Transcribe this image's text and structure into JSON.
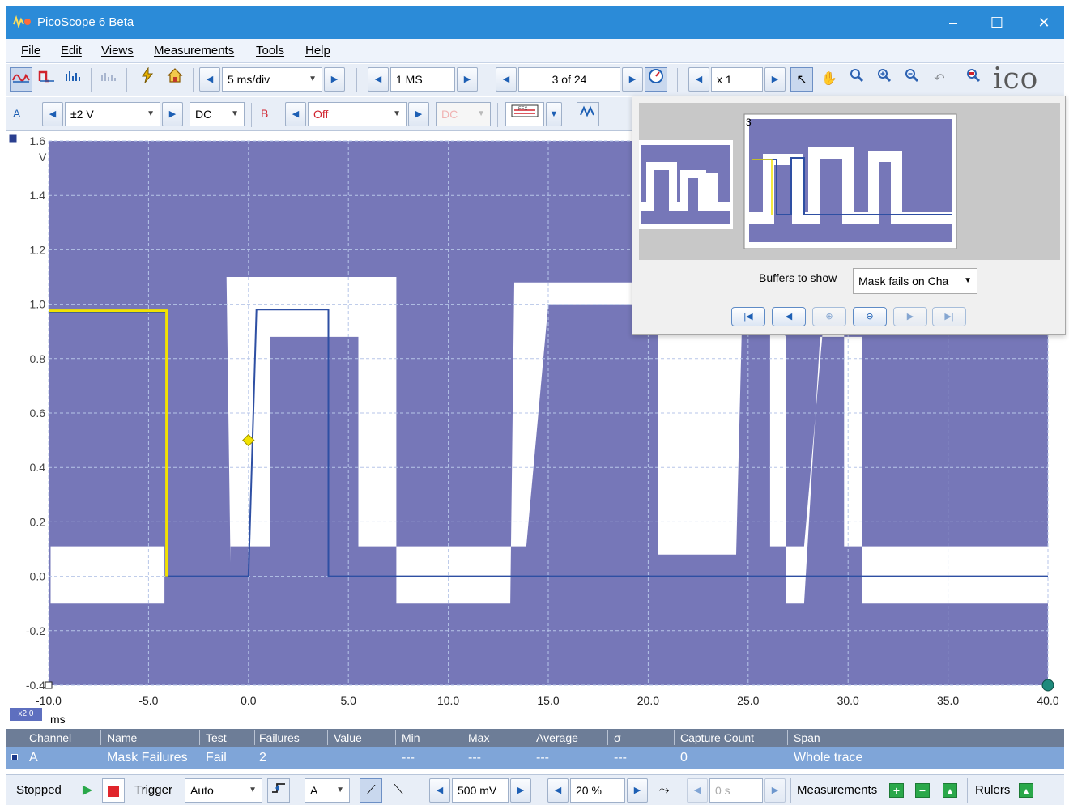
{
  "window": {
    "title": "PicoScope 6 Beta",
    "minimize": "–",
    "maximize": "☐",
    "close": "✕"
  },
  "menu": [
    "File",
    "Edit",
    "Views",
    "Measurements",
    "Tools",
    "Help"
  ],
  "toolbar1": {
    "timebase": "5 ms/div",
    "samples": "1 MS",
    "buffer": "3 of 24",
    "zoom": "x 1",
    "brand": "ico"
  },
  "toolbar2": {
    "channel_a": {
      "label": "A",
      "range": "±2 V",
      "coupling": "DC"
    },
    "channel_b": {
      "label": "B",
      "range": "Off",
      "coupling": "DC"
    }
  },
  "overview": {
    "thumb_index": "3",
    "buffers_label": "Buffers to show",
    "buffers_value": "Mask fails on Cha"
  },
  "plot": {
    "units_y": "V",
    "units_x": "ms",
    "zoom_badge": "x2.0",
    "trace_color": "#2e4fa3",
    "mask_color": "#7677b8",
    "ref_color": "#f2e200"
  },
  "chart_data": {
    "type": "line",
    "title": "",
    "xlabel": "ms",
    "ylabel": "V",
    "xlim": [
      -10,
      40
    ],
    "ylim": [
      -0.4,
      1.6
    ],
    "x_ticks": [
      "-10.0",
      "-5.0",
      "0.0",
      "5.0",
      "10.0",
      "15.0",
      "20.0",
      "25.0",
      "30.0",
      "35.0",
      "40.0"
    ],
    "y_ticks": [
      "1.6",
      "1.4",
      "1.2",
      "1.0",
      "0.8",
      "0.6",
      "0.4",
      "0.2",
      "0.0",
      "-0.2",
      "-0.4"
    ],
    "grid": true,
    "series": [
      {
        "x": [
          -10,
          -4.1,
          -4.1,
          0,
          0.4,
          4,
          4,
          40
        ],
        "y": [
          0.97,
          0.97,
          0.0,
          0.0,
          0.98,
          0.98,
          0.0,
          0.0
        ]
      }
    ],
    "mask_white_band": [
      [
        -10,
        -0.1
      ],
      [
        -10,
        0.11
      ],
      [
        -9.9,
        0.11
      ],
      [
        -9.9,
        -0.1
      ],
      [
        -4.2,
        -0.1
      ],
      [
        -4.2,
        0.11
      ],
      [
        -0.9,
        0.11
      ],
      [
        -0.9,
        0.05
      ],
      [
        -1.1,
        1.1
      ],
      [
        7.4,
        1.1
      ],
      [
        7.4,
        -0.1
      ],
      [
        13.1,
        -0.1
      ],
      [
        13.3,
        1.08
      ],
      [
        24.7,
        1.08
      ],
      [
        26.9,
        0.88
      ],
      [
        26.9,
        -0.1
      ],
      [
        27.8,
        -0.1
      ],
      [
        28.6,
        0.88
      ],
      [
        30.7,
        0.88
      ],
      [
        30.7,
        -0.1
      ],
      [
        40,
        -0.1
      ],
      [
        40,
        0.11
      ],
      [
        29.8,
        0.11
      ],
      [
        29.8,
        0.96
      ],
      [
        28.8,
        0.96
      ],
      [
        27.8,
        0.11
      ],
      [
        26.1,
        0.11
      ],
      [
        26.1,
        0.96
      ],
      [
        24.7,
        0.96
      ],
      [
        24.4,
        0.08
      ],
      [
        20.5,
        0.08
      ],
      [
        20.5,
        1.0
      ],
      [
        15,
        1.0
      ],
      [
        13.9,
        0.11
      ],
      [
        5.5,
        0.11
      ],
      [
        5.5,
        0.88
      ],
      [
        1.1,
        0.88
      ],
      [
        1.1,
        0.11
      ],
      [
        -10,
        0.11
      ]
    ],
    "trigger_marker": {
      "x": 0.0,
      "y": 0.5
    }
  },
  "measurements": {
    "headers": [
      "Channel",
      "Name",
      "Test",
      "Failures",
      "Value",
      "Min",
      "Max",
      "Average",
      "σ",
      "Capture Count",
      "Span"
    ],
    "rows": [
      [
        "A",
        "Mask Failures",
        "Fail",
        "2",
        "",
        "---",
        "---",
        "---",
        "---",
        "0",
        "Whole trace"
      ]
    ]
  },
  "statusbar": {
    "state": "Stopped",
    "trigger_label": "Trigger",
    "trigger_mode": "Auto",
    "trigger_source": "A",
    "threshold": "500 mV",
    "pretrigger": "20 %",
    "delay": "0 s",
    "measurements_label": "Measurements",
    "rulers_label": "Rulers"
  }
}
